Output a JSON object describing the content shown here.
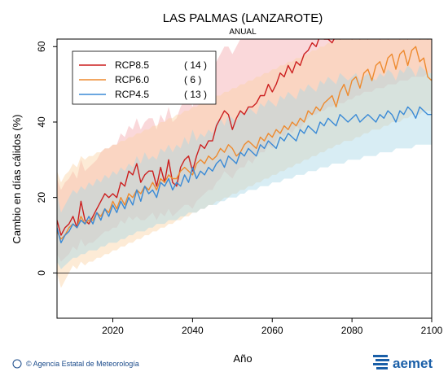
{
  "header": {
    "title": "LAS PALMAS (LANZAROTE)",
    "subtitle": "ANUAL"
  },
  "footer": {
    "credit": "© Agencia Estatal de Meteorología",
    "brand": "aemet"
  },
  "colors": {
    "rcp85": "#cc1f1f",
    "rcp60": "#ee8a2e",
    "rcp45": "#3a8ad6",
    "band85": "#f4a9ae",
    "band60": "#fbd2a3",
    "band45": "#a9d6e6"
  },
  "chart_data": {
    "type": "line",
    "xlabel": "Año",
    "ylabel": "Cambio en días cálidos (%)",
    "xlim": [
      2006,
      2100
    ],
    "ylim": [
      -12,
      62
    ],
    "xticks": [
      2020,
      2040,
      2060,
      2080,
      2100
    ],
    "yticks": [
      0,
      20,
      40,
      60
    ],
    "grid": false,
    "zero_line": true,
    "legend_position": "top-left",
    "series": [
      {
        "name": "RCP8.5",
        "count": "( 14 )",
        "color": "#cc1f1f",
        "x0": 2006,
        "values": [
          14,
          10,
          12,
          13,
          15,
          12,
          19,
          14,
          13,
          15,
          17,
          19,
          21,
          20,
          21,
          20,
          24,
          23,
          27,
          26,
          29,
          24,
          26,
          27,
          27,
          23,
          28,
          24,
          30,
          24,
          23,
          28,
          30,
          31,
          27,
          31,
          34,
          33,
          35,
          35,
          39,
          41,
          43,
          42,
          38,
          41,
          43,
          42,
          44,
          44,
          45,
          47,
          47,
          50,
          48,
          50,
          53,
          52,
          55,
          53,
          56,
          55,
          58,
          59,
          61,
          60,
          63,
          62,
          62,
          61,
          63,
          62,
          63,
          63,
          62,
          63,
          62,
          63,
          62,
          63,
          63,
          62,
          63,
          62,
          63,
          63,
          62,
          63,
          62,
          63,
          63,
          62,
          63,
          62,
          63
        ],
        "band_low": [
          5,
          3,
          4,
          5,
          7,
          6,
          9,
          7,
          8,
          8,
          9,
          10,
          11,
          11,
          12,
          12,
          14,
          13,
          15,
          14,
          15,
          14,
          14,
          15,
          16,
          14,
          16,
          15,
          17,
          15,
          16,
          17,
          18,
          18,
          17,
          19,
          20,
          21,
          22,
          22,
          24,
          25,
          27,
          26,
          25,
          27,
          28,
          28,
          30,
          29,
          31,
          32,
          32,
          34,
          33,
          35,
          37,
          36,
          38,
          37,
          39,
          38,
          40,
          41,
          42,
          42,
          43,
          43,
          44,
          44,
          45,
          45,
          45,
          46,
          46,
          47,
          47,
          48,
          48,
          48,
          49,
          49,
          49,
          50,
          50,
          50,
          51,
          51,
          51,
          52,
          52,
          52,
          52,
          53,
          53
        ],
        "band_high": [
          25,
          22,
          24,
          25,
          27,
          25,
          30,
          27,
          28,
          29,
          30,
          32,
          33,
          33,
          34,
          34,
          37,
          36,
          39,
          38,
          41,
          38,
          40,
          41,
          41,
          38,
          42,
          40,
          44,
          40,
          41,
          44,
          46,
          47,
          44,
          48,
          51,
          51,
          53,
          53,
          56,
          58,
          60,
          60,
          58,
          60,
          62,
          62,
          62,
          62,
          62,
          62,
          62,
          62,
          62,
          62,
          62,
          62,
          62,
          62,
          62,
          62,
          62,
          62,
          62,
          62,
          62,
          62,
          62,
          62,
          62,
          62,
          62,
          62,
          62,
          62,
          62,
          62,
          62,
          62,
          62,
          62,
          62,
          62,
          62,
          62,
          62,
          62,
          62,
          62,
          62,
          62,
          62,
          62,
          62
        ]
      },
      {
        "name": "RCP6.0",
        "count": "(   6 )",
        "color": "#ee8a2e",
        "x0": 2006,
        "values": [
          11,
          9,
          10,
          12,
          13,
          12,
          15,
          13,
          14,
          14,
          16,
          15,
          17,
          16,
          19,
          17,
          20,
          18,
          21,
          20,
          22,
          21,
          23,
          22,
          24,
          22,
          25,
          24,
          26,
          25,
          25,
          27,
          28,
          27,
          26,
          29,
          30,
          29,
          31,
          30,
          31,
          33,
          32,
          34,
          33,
          31,
          32,
          34,
          35,
          34,
          33,
          36,
          35,
          37,
          36,
          38,
          37,
          39,
          38,
          40,
          39,
          41,
          40,
          43,
          42,
          44,
          43,
          45,
          46,
          47,
          44,
          48,
          50,
          47,
          51,
          52,
          49,
          53,
          54,
          51,
          55,
          56,
          53,
          57,
          58,
          54,
          58,
          59,
          55,
          59,
          60,
          56,
          57,
          52,
          51
        ],
        "band_low": [
          0,
          -4,
          -2,
          0,
          2,
          1,
          3,
          2,
          3,
          3,
          4,
          4,
          5,
          5,
          6,
          6,
          7,
          7,
          8,
          8,
          9,
          9,
          10,
          10,
          11,
          11,
          12,
          12,
          13,
          13,
          14,
          14,
          15,
          15,
          16,
          16,
          17,
          17,
          18,
          18,
          19,
          19,
          20,
          20,
          21,
          21,
          22,
          22,
          23,
          23,
          24,
          24,
          25,
          25,
          26,
          26,
          27,
          27,
          28,
          28,
          29,
          29,
          30,
          30,
          31,
          31,
          32,
          32,
          33,
          33,
          34,
          34,
          35,
          35,
          35,
          36,
          36,
          37,
          37,
          38,
          38,
          38,
          39,
          39,
          40,
          40,
          40,
          41,
          41,
          42,
          42,
          42,
          43,
          43,
          43
        ],
        "band_high": [
          27,
          24,
          26,
          27,
          29,
          28,
          31,
          30,
          31,
          31,
          32,
          32,
          33,
          33,
          34,
          34,
          35,
          35,
          36,
          36,
          37,
          37,
          38,
          38,
          39,
          39,
          40,
          40,
          41,
          41,
          42,
          42,
          43,
          43,
          44,
          44,
          45,
          45,
          46,
          46,
          47,
          47,
          48,
          48,
          49,
          49,
          50,
          50,
          51,
          51,
          52,
          52,
          53,
          53,
          54,
          54,
          55,
          55,
          56,
          56,
          57,
          57,
          58,
          58,
          59,
          59,
          60,
          60,
          61,
          61,
          62,
          62,
          62,
          62,
          62,
          62,
          62,
          62,
          62,
          62,
          62,
          62,
          62,
          62,
          62,
          62,
          62,
          62,
          62,
          62,
          62,
          62,
          62,
          62,
          62
        ]
      },
      {
        "name": "RCP4.5",
        "count": "( 13 )",
        "color": "#3a8ad6",
        "x0": 2006,
        "values": [
          12,
          8,
          10,
          11,
          13,
          12,
          14,
          13,
          15,
          13,
          16,
          14,
          17,
          15,
          18,
          16,
          19,
          17,
          20,
          18,
          22,
          19,
          23,
          21,
          22,
          20,
          24,
          23,
          25,
          22,
          24,
          23,
          26,
          24,
          28,
          25,
          27,
          26,
          28,
          27,
          29,
          30,
          28,
          31,
          30,
          29,
          32,
          31,
          33,
          32,
          31,
          34,
          33,
          35,
          34,
          33,
          36,
          35,
          37,
          36,
          35,
          38,
          37,
          39,
          38,
          37,
          40,
          39,
          41,
          40,
          39,
          42,
          41,
          40,
          41,
          42,
          40,
          41,
          42,
          41,
          40,
          42,
          41,
          43,
          42,
          40,
          43,
          42,
          44,
          43,
          41,
          44,
          43,
          42,
          42
        ],
        "band_low": [
          3,
          1,
          2,
          3,
          4,
          4,
          5,
          5,
          6,
          6,
          6,
          7,
          7,
          8,
          8,
          8,
          9,
          9,
          10,
          10,
          11,
          11,
          11,
          12,
          12,
          13,
          13,
          13,
          14,
          14,
          14,
          15,
          15,
          16,
          16,
          16,
          17,
          17,
          18,
          18,
          18,
          19,
          19,
          20,
          20,
          20,
          21,
          21,
          22,
          22,
          22,
          23,
          23,
          23,
          24,
          24,
          24,
          25,
          25,
          25,
          26,
          26,
          26,
          27,
          27,
          27,
          28,
          28,
          28,
          29,
          29,
          29,
          29,
          30,
          30,
          30,
          30,
          31,
          31,
          31,
          31,
          32,
          32,
          32,
          32,
          33,
          33,
          33,
          33,
          33,
          34,
          34,
          34,
          34,
          34
        ],
        "band_high": [
          21,
          16,
          18,
          20,
          22,
          21,
          23,
          22,
          24,
          23,
          25,
          24,
          26,
          25,
          27,
          26,
          28,
          27,
          29,
          28,
          31,
          29,
          32,
          30,
          31,
          30,
          33,
          32,
          34,
          32,
          34,
          33,
          36,
          34,
          38,
          35,
          37,
          36,
          38,
          37,
          40,
          41,
          39,
          42,
          41,
          40,
          43,
          42,
          44,
          43,
          42,
          45,
          44,
          46,
          45,
          44,
          47,
          46,
          48,
          47,
          46,
          49,
          48,
          50,
          49,
          48,
          51,
          50,
          52,
          51,
          50,
          53,
          52,
          51,
          52,
          53,
          51,
          52,
          53,
          52,
          51,
          53,
          52,
          54,
          53,
          51,
          54,
          53,
          55,
          54,
          52,
          55,
          54,
          53,
          53
        ]
      }
    ]
  }
}
